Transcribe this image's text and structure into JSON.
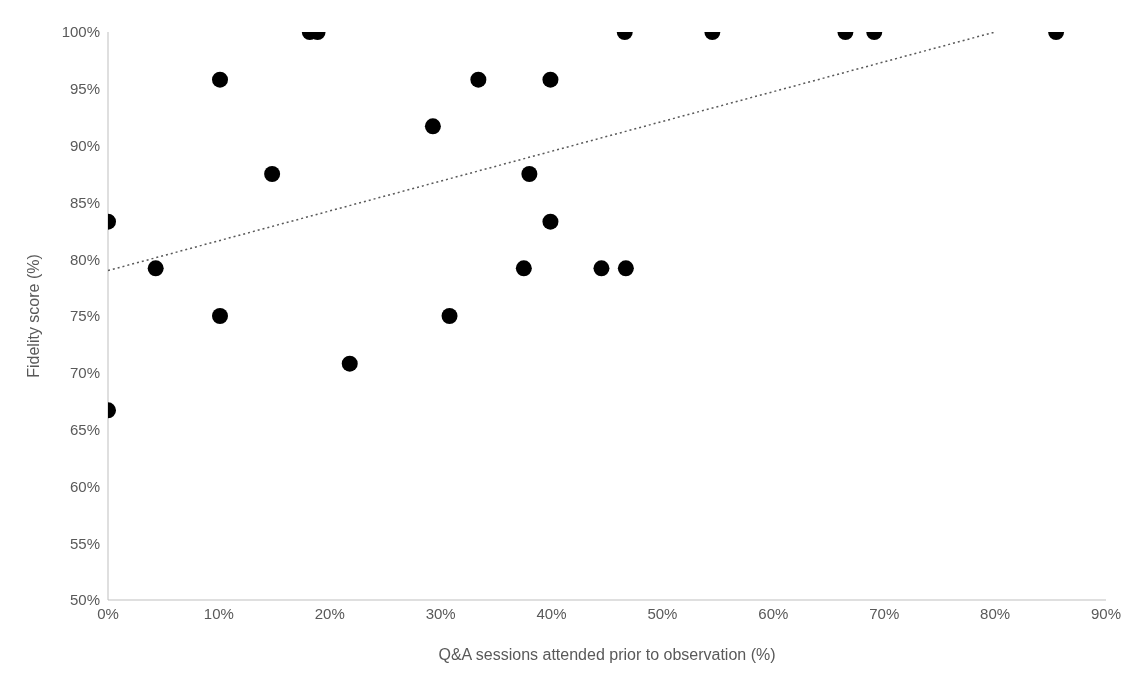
{
  "chart_data": {
    "type": "scatter",
    "xlabel": "Q&A sessions attended prior to observation (%)",
    "ylabel": "Fidelity score (%)",
    "xlim": [
      0,
      90
    ],
    "ylim": [
      50,
      100
    ],
    "xticks": [
      {
        "value": 0,
        "label": "0%"
      },
      {
        "value": 10,
        "label": "10%"
      },
      {
        "value": 20,
        "label": "20%"
      },
      {
        "value": 30,
        "label": "30%"
      },
      {
        "value": 40,
        "label": "40%"
      },
      {
        "value": 50,
        "label": "50%"
      },
      {
        "value": 60,
        "label": "60%"
      },
      {
        "value": 70,
        "label": "70%"
      },
      {
        "value": 80,
        "label": "80%"
      },
      {
        "value": 90,
        "label": "90%"
      }
    ],
    "yticks": [
      {
        "value": 50,
        "label": "50%"
      },
      {
        "value": 55,
        "label": "55%"
      },
      {
        "value": 60,
        "label": "60%"
      },
      {
        "value": 65,
        "label": "65%"
      },
      {
        "value": 70,
        "label": "70%"
      },
      {
        "value": 75,
        "label": "75%"
      },
      {
        "value": 80,
        "label": "80%"
      },
      {
        "value": 85,
        "label": "85%"
      },
      {
        "value": 90,
        "label": "90%"
      },
      {
        "value": 95,
        "label": "95%"
      },
      {
        "value": 100,
        "label": "100%"
      }
    ],
    "grid": false,
    "legend": false,
    "marker": "circle",
    "series": [
      {
        "type": "scatter",
        "color": "#000000",
        "x": [
          0,
          0,
          4.3,
          10.1,
          10.1,
          14.8,
          18.2,
          18.9,
          21.8,
          29.3,
          30.8,
          33.4,
          37.5,
          38,
          39.9,
          39.9,
          44.5,
          46.6,
          46.7,
          54.5,
          66.5,
          69.1,
          85.5
        ],
        "values": [
          83.3,
          66.7,
          79.2,
          95.8,
          75,
          87.5,
          100,
          100,
          70.8,
          91.7,
          75,
          95.8,
          79.2,
          87.5,
          95.8,
          83.3,
          79.2,
          100,
          79.2,
          100,
          100,
          100,
          100
        ]
      },
      {
        "type": "line",
        "color": "#595959",
        "line_style": "dotted",
        "marker": "none",
        "x": [
          0,
          80
        ],
        "values": [
          79,
          100
        ]
      }
    ]
  }
}
